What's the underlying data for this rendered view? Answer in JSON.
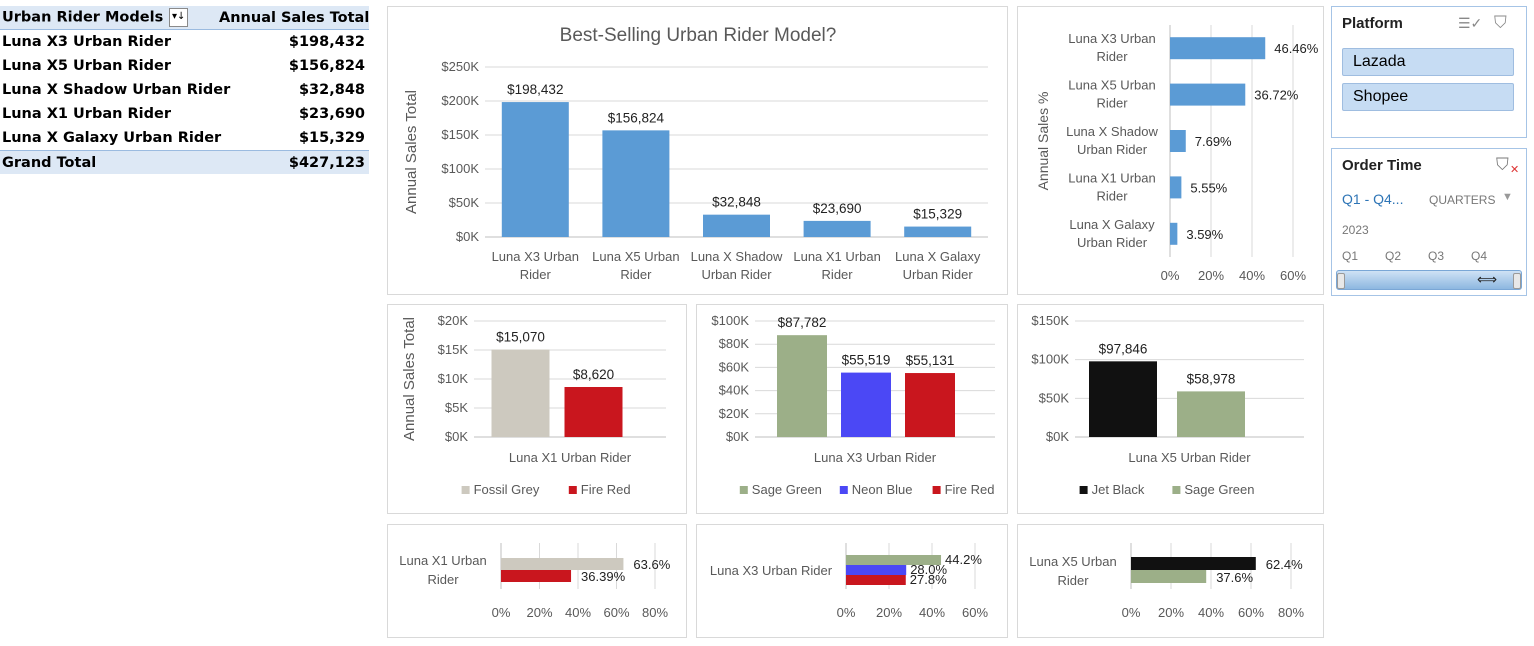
{
  "pivot": {
    "header": {
      "col1": "Urban Rider Models",
      "col2": "Annual Sales Total"
    },
    "rows": [
      {
        "model": "Luna X3 Urban Rider",
        "total": "$198,432"
      },
      {
        "model": "Luna X5 Urban Rider",
        "total": "$156,824"
      },
      {
        "model": "Luna X Shadow Urban Rider",
        "total": "$32,848"
      },
      {
        "model": "Luna X1 Urban Rider",
        "total": "$23,690"
      },
      {
        "model": "Luna X Galaxy Urban Rider",
        "total": "$15,329"
      }
    ],
    "grand": {
      "label": "Grand Total",
      "total": "$427,123"
    }
  },
  "slicers": {
    "platform": {
      "title": "Platform",
      "items": [
        "Lazada",
        "Shopee"
      ]
    },
    "order_time": {
      "title": "Order Time",
      "range": "Q1 - Q4...",
      "level": "QUARTERS",
      "year": "2023",
      "quarters": [
        "Q1",
        "Q2",
        "Q3",
        "Q4"
      ]
    }
  },
  "chart_data": [
    {
      "id": "main",
      "type": "bar",
      "title": "Best-Selling Urban Rider Model?",
      "ylabel": "Annual Sales Total",
      "categories": [
        [
          "Luna X3 Urban",
          "Rider"
        ],
        [
          "Luna X5 Urban",
          "Rider"
        ],
        [
          "Luna X Shadow",
          "Urban Rider"
        ],
        [
          "Luna X1 Urban",
          "Rider"
        ],
        [
          "Luna X Galaxy",
          "Urban Rider"
        ]
      ],
      "values": [
        198432,
        156824,
        32848,
        23690,
        15329
      ],
      "data_labels": [
        "$198,432",
        "$156,824",
        "$32,848",
        "$23,690",
        "$15,329"
      ],
      "yticks": [
        "$0K",
        "$50K",
        "$100K",
        "$150K",
        "$200K",
        "$250K"
      ],
      "ylim": [
        0,
        250000
      ],
      "colors": [
        "#5b9bd5"
      ]
    },
    {
      "id": "pct",
      "type": "bar-horizontal",
      "ylabel": "Annual Sales %",
      "categories": [
        [
          "Luna X3 Urban",
          "Rider"
        ],
        [
          "Luna X5 Urban",
          "Rider"
        ],
        [
          "Luna X Shadow",
          "Urban Rider"
        ],
        [
          "Luna X1 Urban",
          "Rider"
        ],
        [
          "Luna X Galaxy",
          "Urban Rider"
        ]
      ],
      "values": [
        46.46,
        36.72,
        7.69,
        5.55,
        3.59
      ],
      "data_labels": [
        "46.46%",
        "36.72%",
        "7.69%",
        "5.55%",
        "3.59%"
      ],
      "xticks": [
        "0%",
        "20%",
        "40%",
        "60%"
      ],
      "xlim": [
        0,
        60
      ],
      "colors": [
        "#5b9bd5"
      ]
    },
    {
      "id": "x1",
      "type": "bar",
      "ylabel": "Annual Sales Total",
      "category": "Luna X1 Urban Rider",
      "series": [
        {
          "name": "Fossil Grey",
          "value": 15070,
          "label": "$15,070",
          "color": "#cdc9bf"
        },
        {
          "name": "Fire Red",
          "value": 8620,
          "label": "$8,620",
          "color": "#c9161e"
        }
      ],
      "yticks": [
        "$0K",
        "$5K",
        "$10K",
        "$15K",
        "$20K"
      ],
      "ylim": [
        0,
        20000
      ]
    },
    {
      "id": "x3",
      "type": "bar",
      "category": "Luna X3 Urban Rider",
      "series": [
        {
          "name": "Sage Green",
          "value": 87782,
          "label": "$87,782",
          "color": "#9caf88"
        },
        {
          "name": "Neon Blue",
          "value": 55519,
          "label": "$55,519",
          "color": "#4b48f5"
        },
        {
          "name": "Fire Red",
          "value": 55131,
          "label": "$55,131",
          "color": "#c9161e"
        }
      ],
      "yticks": [
        "$0K",
        "$20K",
        "$40K",
        "$60K",
        "$80K",
        "$100K"
      ],
      "ylim": [
        0,
        100000
      ]
    },
    {
      "id": "x5",
      "type": "bar",
      "category": "Luna X5 Urban Rider",
      "series": [
        {
          "name": "Jet Black",
          "value": 97846,
          "label": "$97,846",
          "color": "#111111"
        },
        {
          "name": "Sage Green",
          "value": 58978,
          "label": "$58,978",
          "color": "#9caf88"
        }
      ],
      "yticks": [
        "$0K",
        "$50K",
        "$100K",
        "$150K"
      ],
      "ylim": [
        0,
        150000
      ]
    },
    {
      "id": "x1pct",
      "type": "bar-horizontal",
      "category": [
        "Luna X1 Urban",
        "Rider"
      ],
      "series": [
        {
          "name": "Fossil Grey",
          "value": 63.6,
          "label": "63.6%",
          "color": "#cdc9bf"
        },
        {
          "name": "Fire Red",
          "value": 36.39,
          "label": "36.39%",
          "color": "#c9161e"
        }
      ],
      "xticks": [
        "0%",
        "20%",
        "40%",
        "60%",
        "80%"
      ],
      "xlim": [
        0,
        80
      ]
    },
    {
      "id": "x3pct",
      "type": "bar-horizontal",
      "category": [
        "Luna X3 Urban Rider"
      ],
      "series": [
        {
          "name": "Sage Green",
          "value": 44.2,
          "label": "44.2%",
          "color": "#9caf88"
        },
        {
          "name": "Neon Blue",
          "value": 28.0,
          "label": "28.0%",
          "color": "#4b48f5"
        },
        {
          "name": "Fire Red",
          "value": 27.8,
          "label": "27.8%",
          "color": "#c9161e"
        }
      ],
      "xticks": [
        "0%",
        "20%",
        "40%",
        "60%"
      ],
      "xlim": [
        0,
        60
      ]
    },
    {
      "id": "x5pct",
      "type": "bar-horizontal",
      "category": [
        "Luna X5 Urban",
        "Rider"
      ],
      "series": [
        {
          "name": "Jet Black",
          "value": 62.4,
          "label": "62.4%",
          "color": "#111111"
        },
        {
          "name": "Sage Green",
          "value": 37.6,
          "label": "37.6%",
          "color": "#9caf88"
        }
      ],
      "xticks": [
        "0%",
        "20%",
        "40%",
        "60%",
        "80%"
      ],
      "xlim": [
        0,
        80
      ]
    }
  ]
}
